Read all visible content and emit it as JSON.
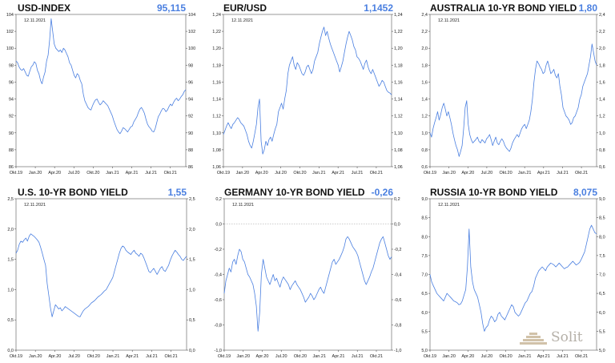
{
  "logo": {
    "text": "Solit",
    "accent": "#c9b79a"
  },
  "chart_data": [
    {
      "type": "line",
      "title": "USD-INDEX",
      "current_value": "95,115",
      "date": "12.11.2021",
      "xticks": [
        "Okt.19",
        "Jan.20",
        "Apr.20",
        "Jul.20",
        "Okt.20",
        "Jan.21",
        "Apr.21",
        "Jul.21",
        "Okt.21"
      ],
      "ylim": [
        86,
        104
      ],
      "yticks": [
        "86",
        "88",
        "90",
        "92",
        "94",
        "96",
        "98",
        "100",
        "102",
        "104"
      ],
      "zero_line": false,
      "series": [
        {
          "color": "#4a7fe0",
          "values": [
            98.5,
            98.3,
            97.8,
            97.5,
            97.4,
            97.6,
            97.2,
            96.8,
            96.7,
            97.3,
            97.8,
            98.0,
            98.4,
            98.2,
            97.4,
            97.0,
            96.2,
            95.8,
            96.6,
            97.2,
            98.5,
            99.2,
            101.0,
            103.5,
            102.0,
            100.5,
            100.0,
            99.8,
            99.6,
            99.8,
            99.5,
            100.0,
            99.8,
            99.4,
            99.0,
            98.3,
            98.0,
            97.4,
            96.8,
            96.5,
            97.0,
            96.8,
            96.2,
            95.8,
            94.6,
            93.8,
            93.4,
            93.0,
            92.8,
            92.7,
            93.2,
            93.6,
            93.9,
            94.0,
            93.6,
            93.3,
            93.5,
            93.8,
            93.6,
            93.4,
            93.2,
            92.8,
            92.4,
            92.0,
            91.4,
            90.9,
            90.4,
            90.1,
            89.9,
            90.2,
            90.6,
            90.5,
            90.3,
            90.1,
            90.4,
            90.7,
            90.8,
            91.3,
            91.6,
            91.9,
            92.4,
            92.8,
            93.0,
            92.7,
            92.3,
            91.6,
            91.0,
            90.7,
            90.5,
            90.2,
            90.1,
            90.5,
            91.2,
            91.9,
            92.2,
            92.6,
            92.9,
            92.8,
            92.5,
            92.7,
            93.1,
            93.4,
            93.2,
            93.6,
            93.9,
            94.1,
            93.8,
            94.0,
            94.3,
            94.5,
            94.9,
            95.1
          ]
        }
      ]
    },
    {
      "type": "line",
      "title": "EUR/USD",
      "current_value": "1,1452",
      "date": "12.11.2021",
      "xticks": [
        "Okt.19",
        "Jan.20",
        "Apr.20",
        "Jul.20",
        "Okt.20",
        "Jan.21",
        "Apr.21",
        "Jul.21",
        "Okt.21"
      ],
      "ylim": [
        1.06,
        1.24
      ],
      "yticks": [
        "1,06",
        "1,08",
        "1,10",
        "1,12",
        "1,14",
        "1,16",
        "1,18",
        "1,20",
        "1,22",
        "1,24"
      ],
      "zero_line": false,
      "series": [
        {
          "color": "#4a7fe0",
          "values": [
            1.098,
            1.103,
            1.108,
            1.112,
            1.108,
            1.105,
            1.11,
            1.112,
            1.115,
            1.118,
            1.116,
            1.112,
            1.11,
            1.108,
            1.103,
            1.098,
            1.09,
            1.085,
            1.082,
            1.09,
            1.1,
            1.11,
            1.13,
            1.14,
            1.09,
            1.075,
            1.08,
            1.09,
            1.085,
            1.092,
            1.095,
            1.09,
            1.098,
            1.105,
            1.11,
            1.125,
            1.13,
            1.135,
            1.128,
            1.14,
            1.15,
            1.17,
            1.18,
            1.185,
            1.19,
            1.18,
            1.175,
            1.183,
            1.18,
            1.175,
            1.17,
            1.168,
            1.172,
            1.178,
            1.18,
            1.175,
            1.17,
            1.175,
            1.185,
            1.19,
            1.195,
            1.205,
            1.213,
            1.22,
            1.225,
            1.215,
            1.22,
            1.212,
            1.205,
            1.2,
            1.195,
            1.19,
            1.185,
            1.18,
            1.172,
            1.178,
            1.185,
            1.195,
            1.205,
            1.213,
            1.22,
            1.215,
            1.21,
            1.202,
            1.198,
            1.19,
            1.188,
            1.185,
            1.18,
            1.175,
            1.182,
            1.186,
            1.178,
            1.173,
            1.17,
            1.175,
            1.17,
            1.165,
            1.16,
            1.155,
            1.158,
            1.162,
            1.16,
            1.155,
            1.15,
            1.148,
            1.147,
            1.145
          ]
        }
      ]
    },
    {
      "type": "line",
      "title": "AUSTRALIA 10-YR BOND YIELD",
      "current_value": "1,80",
      "date": "12.11.2021",
      "xticks": [
        "Okt.19",
        "Jan.20",
        "Apr.20",
        "Jul.20",
        "Okt.20",
        "Jan.21",
        "Apr.21",
        "Jul.21",
        "Okt.21"
      ],
      "ylim": [
        0.6,
        2.4
      ],
      "yticks": [
        "0,6",
        "0,8",
        "1,0",
        "1,2",
        "1,4",
        "1,6",
        "1,8",
        "2,0",
        "2,2",
        "2,4"
      ],
      "zero_line": false,
      "series": [
        {
          "color": "#4a7fe0",
          "values": [
            1.0,
            0.95,
            1.05,
            1.12,
            1.18,
            1.25,
            1.15,
            1.22,
            1.3,
            1.35,
            1.28,
            1.2,
            1.25,
            1.18,
            1.1,
            1.0,
            0.92,
            0.85,
            0.8,
            0.72,
            0.78,
            0.85,
            1.05,
            1.3,
            1.38,
            1.1,
            0.98,
            0.92,
            0.88,
            0.9,
            0.92,
            0.95,
            0.9,
            0.88,
            0.92,
            0.9,
            0.88,
            0.93,
            0.95,
            0.98,
            0.92,
            0.85,
            0.9,
            0.95,
            0.88,
            0.86,
            0.9,
            0.93,
            0.9,
            0.85,
            0.82,
            0.8,
            0.78,
            0.82,
            0.88,
            0.92,
            0.95,
            0.98,
            0.95,
            1.0,
            1.05,
            1.08,
            1.1,
            1.05,
            1.1,
            1.15,
            1.25,
            1.4,
            1.6,
            1.75,
            1.85,
            1.82,
            1.78,
            1.75,
            1.7,
            1.72,
            1.8,
            1.85,
            1.78,
            1.7,
            1.72,
            1.75,
            1.68,
            1.65,
            1.7,
            1.55,
            1.45,
            1.3,
            1.25,
            1.2,
            1.18,
            1.15,
            1.1,
            1.12,
            1.18,
            1.2,
            1.25,
            1.3,
            1.4,
            1.45,
            1.55,
            1.6,
            1.65,
            1.7,
            1.8,
            1.9,
            2.05,
            1.95,
            1.85,
            1.8
          ]
        }
      ]
    },
    {
      "type": "line",
      "title": "U.S. 10-YR BOND YIELD",
      "current_value": "1,55",
      "date": "12.11.2021",
      "xticks": [
        "Okt.19",
        "Jan.20",
        "Apr.20",
        "Jul.20",
        "Okt.20",
        "Jan.21",
        "Apr.21",
        "Jul.21",
        "Okt.21"
      ],
      "ylim": [
        0,
        2.5
      ],
      "yticks": [
        "0,0",
        "0,5",
        "1,0",
        "1,5",
        "2,0",
        "2,5"
      ],
      "zero_line": false,
      "series": [
        {
          "color": "#4a7fe0",
          "values": [
            1.6,
            1.65,
            1.75,
            1.8,
            1.78,
            1.82,
            1.85,
            1.8,
            1.88,
            1.92,
            1.9,
            1.88,
            1.85,
            1.82,
            1.78,
            1.7,
            1.6,
            1.5,
            1.4,
            1.1,
            0.9,
            0.7,
            0.55,
            0.65,
            0.75,
            0.72,
            0.68,
            0.7,
            0.65,
            0.68,
            0.72,
            0.7,
            0.68,
            0.66,
            0.64,
            0.62,
            0.6,
            0.58,
            0.56,
            0.55,
            0.6,
            0.65,
            0.68,
            0.7,
            0.72,
            0.75,
            0.78,
            0.8,
            0.82,
            0.85,
            0.88,
            0.9,
            0.92,
            0.95,
            0.98,
            1.0,
            1.05,
            1.1,
            1.15,
            1.2,
            1.3,
            1.4,
            1.5,
            1.6,
            1.68,
            1.72,
            1.7,
            1.65,
            1.62,
            1.6,
            1.58,
            1.62,
            1.65,
            1.6,
            1.58,
            1.55,
            1.6,
            1.58,
            1.52,
            1.45,
            1.38,
            1.3,
            1.28,
            1.32,
            1.35,
            1.3,
            1.25,
            1.3,
            1.35,
            1.38,
            1.32,
            1.3,
            1.35,
            1.4,
            1.48,
            1.55,
            1.6,
            1.65,
            1.62,
            1.58,
            1.55,
            1.5,
            1.48,
            1.52,
            1.55
          ]
        }
      ]
    },
    {
      "type": "line",
      "title": "GERMANY 10-YR BOND YIELD",
      "current_value": "-0,26",
      "date": "12.11.2021",
      "xticks": [
        "Okt.19",
        "Jan.20",
        "Apr.20",
        "Jul.20",
        "Okt.20",
        "Jan.21",
        "Apr.21",
        "Jul.21",
        "Okt.21"
      ],
      "ylim": [
        -1.0,
        0.2
      ],
      "yticks": [
        "-1,0",
        "-0,8",
        "-0,6",
        "-0,4",
        "-0,2",
        "0,0",
        "0,2"
      ],
      "zero_line": true,
      "series": [
        {
          "color": "#4a7fe0",
          "values": [
            -0.55,
            -0.45,
            -0.4,
            -0.35,
            -0.38,
            -0.3,
            -0.28,
            -0.32,
            -0.25,
            -0.2,
            -0.22,
            -0.28,
            -0.3,
            -0.35,
            -0.4,
            -0.42,
            -0.45,
            -0.48,
            -0.55,
            -0.65,
            -0.85,
            -0.7,
            -0.4,
            -0.28,
            -0.35,
            -0.42,
            -0.45,
            -0.48,
            -0.44,
            -0.4,
            -0.45,
            -0.43,
            -0.47,
            -0.5,
            -0.45,
            -0.42,
            -0.44,
            -0.46,
            -0.48,
            -0.52,
            -0.49,
            -0.47,
            -0.45,
            -0.48,
            -0.5,
            -0.52,
            -0.55,
            -0.58,
            -0.62,
            -0.6,
            -0.58,
            -0.55,
            -0.57,
            -0.6,
            -0.58,
            -0.55,
            -0.52,
            -0.5,
            -0.53,
            -0.55,
            -0.5,
            -0.45,
            -0.4,
            -0.35,
            -0.3,
            -0.28,
            -0.32,
            -0.3,
            -0.28,
            -0.25,
            -0.22,
            -0.18,
            -0.12,
            -0.1,
            -0.12,
            -0.15,
            -0.18,
            -0.2,
            -0.22,
            -0.25,
            -0.3,
            -0.35,
            -0.4,
            -0.45,
            -0.48,
            -0.45,
            -0.42,
            -0.38,
            -0.35,
            -0.3,
            -0.25,
            -0.2,
            -0.15,
            -0.12,
            -0.1,
            -0.15,
            -0.2,
            -0.25,
            -0.28,
            -0.26
          ]
        }
      ]
    },
    {
      "type": "line",
      "title": "RUSSIA 10-YR BOND YIELD",
      "current_value": "8,075",
      "date": "12.11.2021",
      "xticks": [
        "Okt.19",
        "Jan.20",
        "Apr.20",
        "Jul.20",
        "Okt.20",
        "Jan.21",
        "Apr.21",
        "Jul.21",
        "Okt.21"
      ],
      "ylim": [
        5.0,
        9.0
      ],
      "yticks": [
        "5,0",
        "5,5",
        "6,0",
        "6,5",
        "7,0",
        "7,5",
        "8,0",
        "8,5",
        "9,0"
      ],
      "zero_line": false,
      "series": [
        {
          "color": "#4a7fe0",
          "values": [
            7.0,
            6.8,
            6.7,
            6.6,
            6.5,
            6.45,
            6.4,
            6.35,
            6.3,
            6.4,
            6.5,
            6.45,
            6.4,
            6.35,
            6.3,
            6.28,
            6.25,
            6.2,
            6.22,
            6.3,
            6.45,
            6.6,
            7.2,
            8.2,
            7.2,
            6.8,
            6.6,
            6.5,
            6.4,
            6.2,
            6.0,
            5.7,
            5.5,
            5.6,
            5.65,
            5.8,
            5.9,
            5.85,
            5.75,
            5.8,
            5.95,
            6.0,
            5.9,
            5.85,
            5.8,
            5.9,
            6.0,
            6.1,
            6.2,
            6.15,
            6.0,
            5.95,
            5.9,
            5.95,
            6.05,
            6.15,
            6.25,
            6.3,
            6.4,
            6.5,
            6.55,
            6.7,
            6.9,
            7.0,
            7.1,
            7.15,
            7.2,
            7.15,
            7.1,
            7.2,
            7.25,
            7.3,
            7.28,
            7.25,
            7.2,
            7.25,
            7.3,
            7.25,
            7.2,
            7.15,
            7.18,
            7.2,
            7.25,
            7.3,
            7.35,
            7.3,
            7.25,
            7.28,
            7.32,
            7.4,
            7.5,
            7.6,
            7.8,
            8.0,
            8.2,
            8.3,
            8.2,
            8.1,
            8.075
          ]
        }
      ]
    }
  ]
}
